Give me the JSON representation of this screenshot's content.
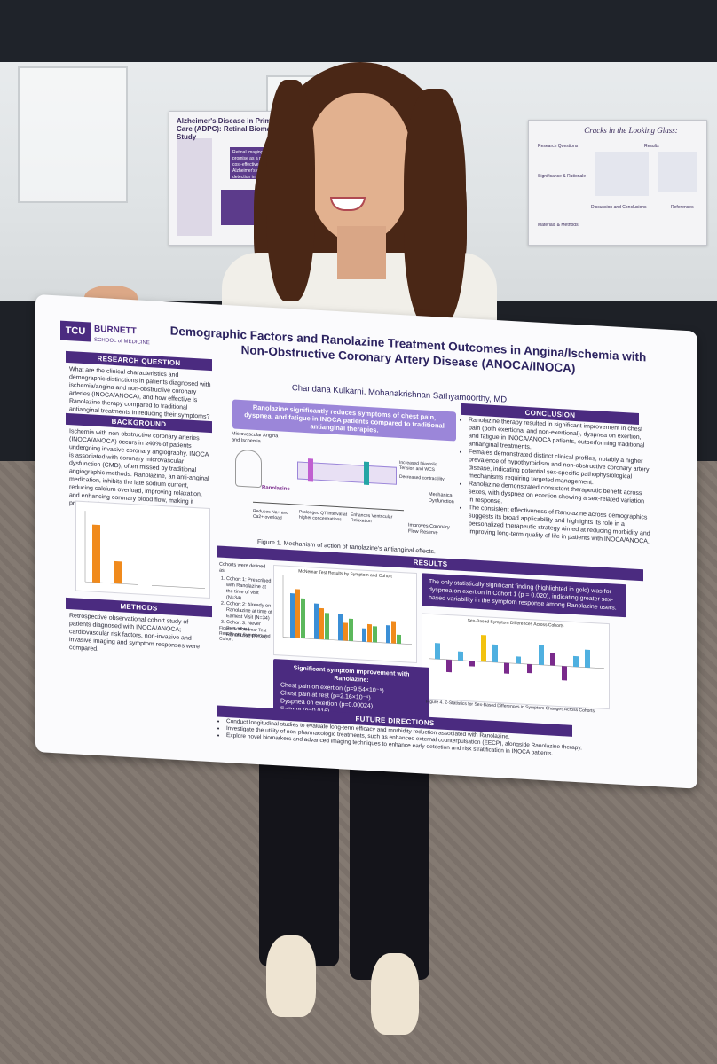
{
  "background_posters": {
    "left_title": "Alzheimer's Disease in Primary Care (ADPC): Retinal Biomarker Study",
    "left_highlight": "Retinal imaging shows promise as a noninvasive, cost-effective tool for early Alzheimer's disease detection in primary care settings.",
    "right_title": "Cracks in the Looking Glass:",
    "right_sections": [
      "Research Questions",
      "Results",
      "Significance & Rationale",
      "Discussion and Conclusions",
      "Materials & Methods",
      "References"
    ]
  },
  "poster": {
    "logo_text": "TCU",
    "school_name": "BURNETT",
    "school_sub": "SCHOOL of MEDICINE",
    "title_line1": "Demographic Factors and Ranolazine Treatment Outcomes in Angina/Ischemia with",
    "title_line2": "Non-Obstructive Coronary Artery Disease (ANOCA/INOCA)",
    "authors": "Chandana Kulkarni, Mohanakrishnan Sathyamoorthy, MD",
    "research_question_header": "RESEARCH QUESTION",
    "research_question": "What are the clinical characteristics and demographic distinctions in patients diagnosed with ischemia/angina and non-obstructive coronary arteries (INOCA/ANOCA), and how effective is Ranolazine therapy compared to traditional antianginal treatments in reducing their symptoms?",
    "background_header": "BACKGROUND",
    "background_text": "Ischemia with non-obstructive coronary arteries (INOCA/ANOCA) occurs in ≥40% of patients undergoing invasive coronary angiography. INOCA is associated with coronary microvascular dysfunction (CMD), often missed by traditional angiographic methods. Ranolazine, an anti-anginal medication, inhibits the late sodium current, reducing calcium overload, improving relaxation, and enhancing coronary blood flow, making it promising for INOCA management.",
    "methods_header": "METHODS",
    "methods_text": "Retrospective observational cohort study of patients diagnosed with INOCA/ANOCA; cardiovascular risk factors, non-invasive and invasive imaging and symptom responses were compared.",
    "highlight_text": "Ranolazine significantly reduces symptoms of chest pain, dyspnea, and fatigue in INOCA patients compared to traditional antianginal therapies.",
    "diagram_labels": {
      "left_top": "Microvascular Angina and Ischemia",
      "ranolazine": "Ranolazine",
      "mechanical": "Mechanical Dysfunction",
      "flow_reserve": "Improves Coronary Flow Reserve",
      "reduces": "Reduces Na+ and Ca2+ overload",
      "increased_tension": "Increased Diastolic Tension and WCS",
      "decreased_contractility": "Decreased contractility",
      "enhances": "Enhances Ventricular Relaxation",
      "prolonged": "Prolonged QT interval at higher concentrations"
    },
    "figure1_caption": "Figure 1. Mechanism of action of ranolazine's antianginal effects.",
    "conclusion_header": "CONCLUSION",
    "conclusion_items": [
      "Ranolazine therapy resulted in significant improvement in chest pain (both exertional and non-exertional), dyspnea on exertion, and fatigue in INOCA/ANOCA patients, outperforming traditional antianginal treatments.",
      "Females demonstrated distinct clinical profiles, notably a higher prevalence of hypothyroidism and non-obstructive coronary artery disease, indicating potential sex-specific pathophysiological mechanisms requiring targeted management.",
      "Ranolazine demonstrated consistent therapeutic benefit across sexes, with dyspnea on exertion showing a sex-related variation in response.",
      "The consistent effectiveness of Ranolazine across demographics suggests its broad applicability and highlights its role in a personalized therapeutic strategy aimed at reducing morbidity and improving long-term quality of life in patients with INOCA/ANOCA."
    ],
    "results_header": "RESULTS",
    "cohorts_intro": "Cohorts were defined as:",
    "cohorts": [
      "Cohort 1: Prescribed with Ranolazine at the time of visit (N=34)",
      "Cohort 2: Already on Ranolazine at time of Earliest Visit (N=34)",
      "Cohort 3: Never Prescribed Ranolazine (N=36)"
    ],
    "figure3_caption": "Figure 3. McNemar Test Results per Symptom and Cohort.",
    "results_callout": "The only statistically significant finding (highlighted in gold) was for dyspnea on exertion in Cohort 1 (p = 0.020), indicating greater sex-based variability in the symptom response among Ranolazine users.",
    "chart1_title": "McNemar Test Results by Symptom and Cohort",
    "chart2_title": "Sex-Based Symptom Differences Across Cohorts",
    "improvement_title": "Significant symptom improvement with Ranolazine:",
    "improvement_items": [
      "Chest pain on exertion (p=9.54×10⁻⁵)",
      "Chest pain at rest (p=2.16×10⁻⁴)",
      "Dyspnea on exertion (p=0.00024)",
      "Fatigue (p=0.016)"
    ],
    "figure4_caption": "Figure 4. Z-Statistics for Sex-Based Differences in Symptom Changes Across Cohorts",
    "future_header": "FUTURE DIRECTIONS",
    "future_items": [
      "Conduct longitudinal studies to evaluate long-term efficacy and morbidity reduction associated with Ranolazine.",
      "Investigate the utility of non-pharmacologic treatments, such as enhanced external counterpulsation (EECP), alongside Ranolazine therapy.",
      "Explore novel biomarkers and advanced imaging techniques to enhance early detection and risk stratification in INOCA patients."
    ]
  },
  "colors": {
    "purple": "#4b2b80",
    "lavender": "#9b86d9",
    "bar_orange": "#f08a1c",
    "bar_blue": "#3b8fd6",
    "bar_green": "#5cb85c",
    "bar_gold": "#f2c20f",
    "bar_purple": "#7a2a8c",
    "bar_cyan": "#4fb0e0"
  }
}
